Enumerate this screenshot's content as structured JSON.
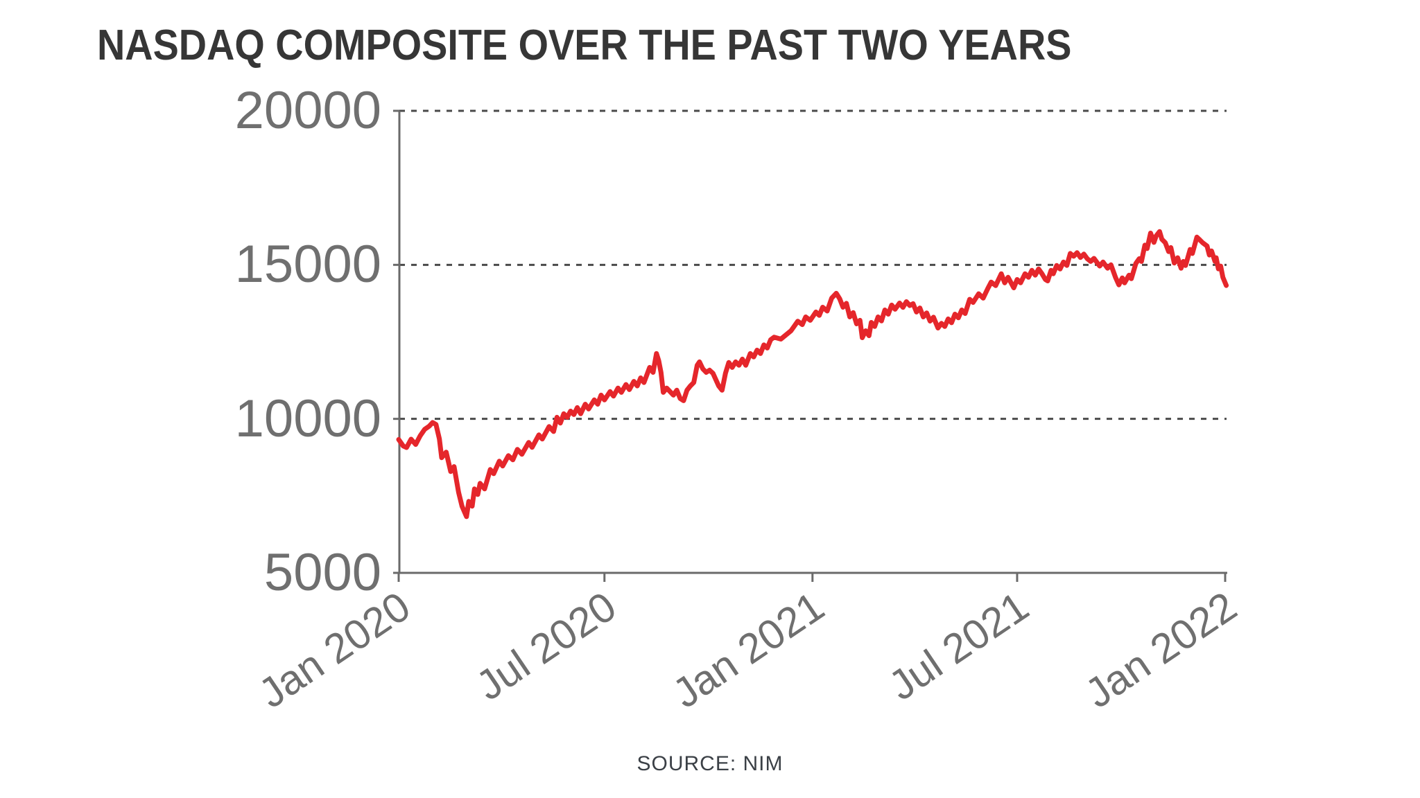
{
  "header": {
    "title": "NASDAQ COMPOSITE OVER THE PAST TWO YEARS"
  },
  "footer": {
    "source_label": "SOURCE: NIM"
  },
  "colors": {
    "line": "#e5262b",
    "title_text": "#363636",
    "tick_label": "#6f6f6f",
    "gridline": "#4a4a4a",
    "spine": "#6a6a6a",
    "background": "#ffffff"
  },
  "chart_data": {
    "type": "line",
    "title": "NASDAQ COMPOSITE OVER THE PAST TWO YEARS",
    "source": "SOURCE: NIM",
    "xlabel": "",
    "ylabel": "",
    "grid": "horizontal-dotted",
    "legend": "none",
    "ylim": [
      5000,
      20000
    ],
    "xlim": [
      "2020-01-01",
      "2022-01-02"
    ],
    "y_ticks": [
      {
        "value": 5000,
        "label": "5000"
      },
      {
        "value": 10000,
        "label": "10000"
      },
      {
        "value": 15000,
        "label": "15000"
      },
      {
        "value": 20000,
        "label": "20000"
      }
    ],
    "x_ticks": [
      {
        "date": "2020-01-01",
        "label": "Jan 2020"
      },
      {
        "date": "2020-07-01",
        "label": "Jul 2020"
      },
      {
        "date": "2021-01-01",
        "label": "Jan 2021"
      },
      {
        "date": "2021-07-01",
        "label": "Jul 2021"
      },
      {
        "date": "2022-01-01",
        "label": "Jan 2022"
      }
    ],
    "series": [
      {
        "name": "NASDAQ Composite",
        "color": "#e5262b",
        "points": [
          [
            "2020-01-01",
            9330
          ],
          [
            "2020-01-05",
            9120
          ],
          [
            "2020-01-08",
            9070
          ],
          [
            "2020-01-12",
            9340
          ],
          [
            "2020-01-16",
            9170
          ],
          [
            "2020-01-20",
            9450
          ],
          [
            "2020-01-24",
            9660
          ],
          [
            "2020-01-28",
            9760
          ],
          [
            "2020-01-31",
            9880
          ],
          [
            "2020-02-03",
            9820
          ],
          [
            "2020-02-06",
            9350
          ],
          [
            "2020-02-08",
            8740
          ],
          [
            "2020-02-12",
            8920
          ],
          [
            "2020-02-16",
            8290
          ],
          [
            "2020-02-19",
            8450
          ],
          [
            "2020-02-23",
            7615
          ],
          [
            "2020-02-26",
            7165
          ],
          [
            "2020-03-01",
            6825
          ],
          [
            "2020-03-03",
            7320
          ],
          [
            "2020-03-06",
            7165
          ],
          [
            "2020-03-08",
            7725
          ],
          [
            "2020-03-11",
            7545
          ],
          [
            "2020-03-13",
            7905
          ],
          [
            "2020-03-17",
            7725
          ],
          [
            "2020-03-22",
            8355
          ],
          [
            "2020-03-25",
            8220
          ],
          [
            "2020-03-30",
            8625
          ],
          [
            "2020-04-02",
            8470
          ],
          [
            "2020-04-07",
            8805
          ],
          [
            "2020-04-11",
            8670
          ],
          [
            "2020-04-15",
            9010
          ],
          [
            "2020-04-19",
            8850
          ],
          [
            "2020-04-25",
            9235
          ],
          [
            "2020-04-28",
            9075
          ],
          [
            "2020-05-04",
            9480
          ],
          [
            "2020-05-07",
            9345
          ],
          [
            "2020-05-13",
            9750
          ],
          [
            "2020-05-17",
            9590
          ],
          [
            "2020-05-20",
            10050
          ],
          [
            "2020-05-23",
            9865
          ],
          [
            "2020-05-26",
            10165
          ],
          [
            "2020-05-29",
            10050
          ],
          [
            "2020-06-01",
            10250
          ],
          [
            "2020-06-04",
            10140
          ],
          [
            "2020-06-07",
            10365
          ],
          [
            "2020-06-10",
            10165
          ],
          [
            "2020-06-14",
            10475
          ],
          [
            "2020-06-17",
            10320
          ],
          [
            "2020-06-22",
            10615
          ],
          [
            "2020-06-25",
            10475
          ],
          [
            "2020-06-28",
            10770
          ],
          [
            "2020-07-01",
            10615
          ],
          [
            "2020-07-06",
            10885
          ],
          [
            "2020-07-09",
            10740
          ],
          [
            "2020-07-13",
            11000
          ],
          [
            "2020-07-16",
            10860
          ],
          [
            "2020-07-20",
            11115
          ],
          [
            "2020-07-23",
            10950
          ],
          [
            "2020-07-27",
            11215
          ],
          [
            "2020-07-30",
            11070
          ],
          [
            "2020-08-02",
            11330
          ],
          [
            "2020-08-05",
            11180
          ],
          [
            "2020-08-10",
            11670
          ],
          [
            "2020-08-13",
            11510
          ],
          [
            "2020-08-16",
            12120
          ],
          [
            "2020-08-18",
            11890
          ],
          [
            "2020-08-20",
            11510
          ],
          [
            "2020-08-22",
            10860
          ],
          [
            "2020-08-25",
            11000
          ],
          [
            "2020-08-28",
            10885
          ],
          [
            "2020-08-31",
            10770
          ],
          [
            "2020-09-03",
            10930
          ],
          [
            "2020-09-06",
            10660
          ],
          [
            "2020-09-09",
            10590
          ],
          [
            "2020-09-12",
            10930
          ],
          [
            "2020-09-15",
            11070
          ],
          [
            "2020-09-18",
            11180
          ],
          [
            "2020-09-21",
            11740
          ],
          [
            "2020-09-23",
            11850
          ],
          [
            "2020-09-26",
            11625
          ],
          [
            "2020-09-29",
            11510
          ],
          [
            "2020-10-02",
            11580
          ],
          [
            "2020-10-05",
            11480
          ],
          [
            "2020-10-10",
            11070
          ],
          [
            "2020-10-13",
            10930
          ],
          [
            "2020-10-16",
            11480
          ],
          [
            "2020-10-19",
            11830
          ],
          [
            "2020-10-22",
            11670
          ],
          [
            "2020-10-25",
            11850
          ],
          [
            "2020-10-28",
            11740
          ],
          [
            "2020-10-31",
            11940
          ],
          [
            "2020-11-03",
            11740
          ],
          [
            "2020-11-07",
            12120
          ],
          [
            "2020-11-10",
            12010
          ],
          [
            "2020-11-13",
            12230
          ],
          [
            "2020-11-16",
            12120
          ],
          [
            "2020-11-19",
            12400
          ],
          [
            "2020-11-22",
            12300
          ],
          [
            "2020-11-25",
            12570
          ],
          [
            "2020-11-28",
            12650
          ],
          [
            "2020-12-04",
            12590
          ],
          [
            "2020-12-13",
            12860
          ],
          [
            "2020-12-19",
            13170
          ],
          [
            "2020-12-23",
            13060
          ],
          [
            "2020-12-26",
            13310
          ],
          [
            "2020-12-30",
            13200
          ],
          [
            "2021-01-04",
            13470
          ],
          [
            "2021-01-07",
            13360
          ],
          [
            "2021-01-10",
            13625
          ],
          [
            "2021-01-14",
            13500
          ],
          [
            "2021-01-18",
            13920
          ],
          [
            "2021-01-22",
            14077
          ],
          [
            "2021-01-25",
            13900
          ],
          [
            "2021-01-28",
            13625
          ],
          [
            "2021-01-31",
            13750
          ],
          [
            "2021-02-03",
            13310
          ],
          [
            "2021-02-06",
            13450
          ],
          [
            "2021-02-09",
            13085
          ],
          [
            "2021-02-12",
            13200
          ],
          [
            "2021-02-14",
            12635
          ],
          [
            "2021-02-17",
            12860
          ],
          [
            "2021-02-20",
            12700
          ],
          [
            "2021-02-22",
            13130
          ],
          [
            "2021-02-25",
            13000
          ],
          [
            "2021-02-28",
            13310
          ],
          [
            "2021-03-03",
            13180
          ],
          [
            "2021-03-06",
            13535
          ],
          [
            "2021-03-09",
            13400
          ],
          [
            "2021-03-12",
            13695
          ],
          [
            "2021-03-15",
            13560
          ],
          [
            "2021-03-19",
            13760
          ],
          [
            "2021-03-22",
            13620
          ],
          [
            "2021-03-25",
            13805
          ],
          [
            "2021-03-28",
            13680
          ],
          [
            "2021-03-31",
            13740
          ],
          [
            "2021-04-03",
            13470
          ],
          [
            "2021-04-06",
            13600
          ],
          [
            "2021-04-09",
            13310
          ],
          [
            "2021-04-12",
            13440
          ],
          [
            "2021-04-15",
            13175
          ],
          [
            "2021-04-18",
            13300
          ],
          [
            "2021-04-22",
            12950
          ],
          [
            "2021-04-25",
            13100
          ],
          [
            "2021-04-28",
            13000
          ],
          [
            "2021-05-01",
            13245
          ],
          [
            "2021-05-04",
            13120
          ],
          [
            "2021-05-07",
            13400
          ],
          [
            "2021-05-10",
            13280
          ],
          [
            "2021-05-13",
            13535
          ],
          [
            "2021-05-16",
            13420
          ],
          [
            "2021-05-20",
            13880
          ],
          [
            "2021-05-23",
            13780
          ],
          [
            "2021-05-28",
            14060
          ],
          [
            "2021-06-01",
            13920
          ],
          [
            "2021-06-05",
            14230
          ],
          [
            "2021-06-08",
            14440
          ],
          [
            "2021-06-12",
            14325
          ],
          [
            "2021-06-17",
            14710
          ],
          [
            "2021-06-20",
            14415
          ],
          [
            "2021-06-23",
            14595
          ],
          [
            "2021-06-28",
            14255
          ],
          [
            "2021-07-01",
            14525
          ],
          [
            "2021-07-04",
            14415
          ],
          [
            "2021-07-08",
            14710
          ],
          [
            "2021-07-11",
            14595
          ],
          [
            "2021-07-14",
            14820
          ],
          [
            "2021-07-17",
            14665
          ],
          [
            "2021-07-20",
            14865
          ],
          [
            "2021-07-23",
            14710
          ],
          [
            "2021-07-26",
            14525
          ],
          [
            "2021-07-28",
            14480
          ],
          [
            "2021-07-31",
            14820
          ],
          [
            "2021-08-02",
            14710
          ],
          [
            "2021-08-05",
            14980
          ],
          [
            "2021-08-08",
            14865
          ],
          [
            "2021-08-11",
            15090
          ],
          [
            "2021-08-14",
            14980
          ],
          [
            "2021-08-17",
            15370
          ],
          [
            "2021-08-20",
            15280
          ],
          [
            "2021-08-23",
            15395
          ],
          [
            "2021-08-26",
            15240
          ],
          [
            "2021-08-29",
            15350
          ],
          [
            "2021-09-01",
            15200
          ],
          [
            "2021-09-04",
            15110
          ],
          [
            "2021-09-07",
            15210
          ],
          [
            "2021-09-12",
            14960
          ],
          [
            "2021-09-15",
            15090
          ],
          [
            "2021-09-19",
            14890
          ],
          [
            "2021-09-22",
            15000
          ],
          [
            "2021-09-26",
            14595
          ],
          [
            "2021-09-29",
            14350
          ],
          [
            "2021-10-02",
            14575
          ],
          [
            "2021-10-04",
            14415
          ],
          [
            "2021-10-08",
            14665
          ],
          [
            "2021-10-10",
            14550
          ],
          [
            "2021-10-14",
            15045
          ],
          [
            "2021-10-17",
            15200
          ],
          [
            "2021-10-19",
            15110
          ],
          [
            "2021-10-22",
            15640
          ],
          [
            "2021-10-24",
            15530
          ],
          [
            "2021-10-27",
            16030
          ],
          [
            "2021-10-30",
            15730
          ],
          [
            "2021-11-01",
            15940
          ],
          [
            "2021-11-04",
            16080
          ],
          [
            "2021-11-06",
            15830
          ],
          [
            "2021-11-09",
            15720
          ],
          [
            "2021-11-12",
            15430
          ],
          [
            "2021-11-14",
            15560
          ],
          [
            "2021-11-17",
            15060
          ],
          [
            "2021-11-20",
            15230
          ],
          [
            "2021-11-23",
            14890
          ],
          [
            "2021-11-25",
            15110
          ],
          [
            "2021-11-27",
            14980
          ],
          [
            "2021-12-01",
            15500
          ],
          [
            "2021-12-03",
            15370
          ],
          [
            "2021-12-07",
            15900
          ],
          [
            "2021-12-09",
            15830
          ],
          [
            "2021-12-12",
            15720
          ],
          [
            "2021-12-16",
            15610
          ],
          [
            "2021-12-18",
            15320
          ],
          [
            "2021-12-20",
            15450
          ],
          [
            "2021-12-23",
            15110
          ],
          [
            "2021-12-24",
            15230
          ],
          [
            "2021-12-26",
            14870
          ],
          [
            "2021-12-28",
            14960
          ],
          [
            "2021-12-30",
            14595
          ],
          [
            "2022-01-02",
            14330
          ]
        ]
      }
    ]
  }
}
